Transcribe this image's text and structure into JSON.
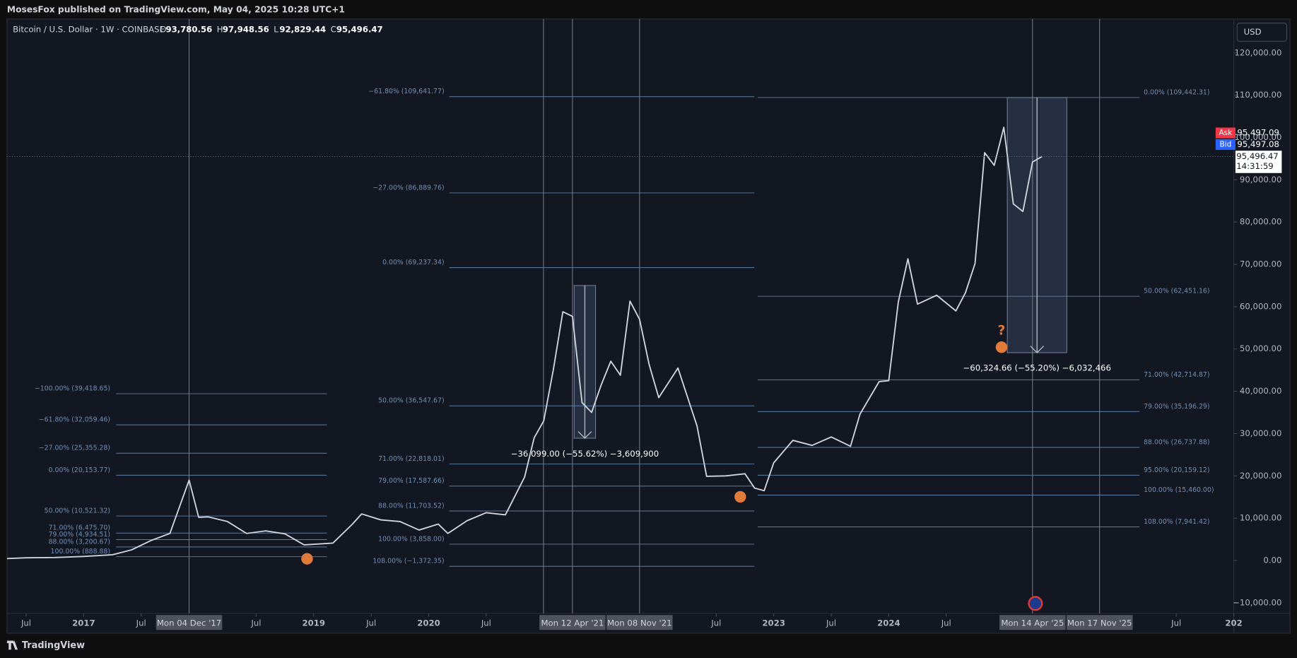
{
  "header": {
    "publisher": "MosesFox published on TradingView.com, May 04, 2025 10:28 UTC+1"
  },
  "legend": {
    "symbol": "Bitcoin / U.S. Dollar · 1W · COINBASE",
    "ohlc": [
      {
        "key": "O",
        "value": "93,780.56"
      },
      {
        "key": "H",
        "value": "97,948.56"
      },
      {
        "key": "L",
        "value": "92,829.44"
      },
      {
        "key": "C",
        "value": "95,496.47"
      }
    ]
  },
  "quote": {
    "currency": "USD",
    "ask_label": "Ask",
    "ask": "95,497.09",
    "bid_label": "Bid",
    "bid": "95,497.08",
    "last": "95,496.47",
    "countdown": "14:31:59"
  },
  "chart_data": {
    "type": "line",
    "x": [
      "2016-05",
      "2016-07",
      "2016-10",
      "2017-01",
      "2017-04",
      "2017-06",
      "2017-08",
      "2017-10",
      "2017-12",
      "2018-01",
      "2018-02",
      "2018-04",
      "2018-06",
      "2018-08",
      "2018-10",
      "2018-12",
      "2019-03",
      "2019-05",
      "2019-06",
      "2019-08",
      "2019-10",
      "2019-12",
      "2020-02",
      "2020-03",
      "2020-05",
      "2020-07",
      "2020-09",
      "2020-11",
      "2020-12",
      "2021-01",
      "2021-02",
      "2021-03",
      "2021-04",
      "2021-05",
      "2021-06",
      "2021-07",
      "2021-08",
      "2021-09",
      "2021-10",
      "2021-11",
      "2021-12",
      "2022-01",
      "2022-03",
      "2022-05",
      "2022-06",
      "2022-08",
      "2022-10",
      "2022-11",
      "2022-12",
      "2023-01",
      "2023-03",
      "2023-05",
      "2023-07",
      "2023-09",
      "2023-10",
      "2023-12",
      "2024-01",
      "2024-02",
      "2024-03",
      "2024-04",
      "2024-06",
      "2024-08",
      "2024-09",
      "2024-10",
      "2024-11",
      "2024-12",
      "2025-01",
      "2025-02",
      "2025-03",
      "2025-04",
      "2025-05"
    ],
    "series": [
      {
        "color": "#d1d4dc",
        "values": [
          450,
          650,
          700,
          970,
          1350,
          2500,
          4700,
          6400,
          19000,
          10200,
          10300,
          9200,
          6400,
          7000,
          6300,
          3700,
          4100,
          8500,
          11000,
          9600,
          9200,
          7200,
          8600,
          6400,
          9400,
          11300,
          10800,
          19700,
          29000,
          33000,
          45000,
          58800,
          57700,
          37300,
          35000,
          41500,
          47100,
          43800,
          61300,
          57000,
          46300,
          38500,
          45500,
          31800,
          19900,
          20000,
          20500,
          17100,
          16500,
          23100,
          28400,
          27200,
          29200,
          27000,
          34600,
          42300,
          42500,
          61100,
          71300,
          60600,
          62700,
          59000,
          63300,
          70200,
          96400,
          93400,
          102400,
          84300,
          82500,
          94200,
          95496.47
        ]
      }
    ],
    "xlim": [
      "2016-05",
      "2027-01"
    ],
    "xticks": [
      {
        "value": "2016-07",
        "label": "Jul"
      },
      {
        "value": "2017-01",
        "label": "2017"
      },
      {
        "value": "2017-07",
        "label": "Jul"
      },
      {
        "value": "2018-07",
        "label": "Jul"
      },
      {
        "value": "2019-01",
        "label": "2019"
      },
      {
        "value": "2019-07",
        "label": "Jul"
      },
      {
        "value": "2020-01",
        "label": "2020"
      },
      {
        "value": "2020-07",
        "label": "Jul"
      },
      {
        "value": "2022-07",
        "label": "Jul"
      },
      {
        "value": "2023-01",
        "label": "2023"
      },
      {
        "value": "2023-07",
        "label": "Jul"
      },
      {
        "value": "2024-01",
        "label": "2024"
      },
      {
        "value": "2024-07",
        "label": "Jul"
      },
      {
        "value": "2026-07",
        "label": "Jul"
      },
      {
        "value": "2027-01",
        "label": "202"
      }
    ],
    "ylim": [
      -12500,
      127800
    ],
    "yticks": [
      {
        "value": -10000,
        "label": "−10,000.00"
      },
      {
        "value": 0,
        "label": "0.00"
      },
      {
        "value": 10000,
        "label": "10,000.00"
      },
      {
        "value": 20000,
        "label": "20,000.00"
      },
      {
        "value": 30000,
        "label": "30,000.00"
      },
      {
        "value": 40000,
        "label": "40,000.00"
      },
      {
        "value": 50000,
        "label": "50,000.00"
      },
      {
        "value": 60000,
        "label": "60,000.00"
      },
      {
        "value": 70000,
        "label": "70,000.00"
      },
      {
        "value": 80000,
        "label": "80,000.00"
      },
      {
        "value": 90000,
        "label": "90,000.00"
      },
      {
        "value": 100000,
        "label": "100,000.00"
      },
      {
        "value": 110000,
        "label": "110,000.00"
      },
      {
        "value": 120000,
        "label": "120,000.00"
      }
    ],
    "fib_sets": [
      {
        "levels": [
          {
            "label": "−100.00% (39,418.65)",
            "value": 39418.65
          },
          {
            "label": "−61.80% (32,059.46)",
            "value": 32059.46
          },
          {
            "label": "−27.00% (25,355.28)",
            "value": 25355.28
          },
          {
            "label": "0.00% (20,153.77)",
            "value": 20153.77
          },
          {
            "label": "50.00% (10,521.32)",
            "value": 10521.32
          },
          {
            "label": "71.00% (6,475.70)",
            "value": 6475.7
          },
          {
            "label": "79.00% (4,934.51)",
            "value": 4934.51
          },
          {
            "label": "88.00% (3,200.67)",
            "value": 3200.67
          },
          {
            "label": "100.00% (888.88)",
            "value": 888.88
          }
        ]
      },
      {
        "levels": [
          {
            "label": "−61.80% (109,641.77)",
            "value": 109641.77
          },
          {
            "label": "−27.00% (86,889.76)",
            "value": 86889.76
          },
          {
            "label": "0.00% (69,237.34)",
            "value": 69237.34
          },
          {
            "label": "50.00% (36,547.67)",
            "value": 36547.67
          },
          {
            "label": "71.00% (22,818.01)",
            "value": 22818.01
          },
          {
            "label": "79.00% (17,587.66)",
            "value": 17587.66
          },
          {
            "label": "88.00% (11,703.52)",
            "value": 11703.52
          },
          {
            "label": "100.00% (3,858.00)",
            "value": 3858
          },
          {
            "label": "108.00% (−1,372.35)",
            "value": -1372.35
          }
        ]
      },
      {
        "levels": [
          {
            "label": "0.00% (109,442.31)",
            "value": 109442.31
          },
          {
            "label": "50.00% (62,451.16)",
            "value": 62451.16
          },
          {
            "label": "71.00% (42,714.87)",
            "value": 42714.87
          },
          {
            "label": "79.00% (35,196.29)",
            "value": 35196.29
          },
          {
            "label": "88.00% (26,737.88)",
            "value": 26737.88
          },
          {
            "label": "95.00% (20,159.12)",
            "value": 20159.12
          },
          {
            "label": "100.00% (15,460.00)",
            "value": 15460
          },
          {
            "label": "108.00% (7,941.42)",
            "value": 7941.42
          }
        ]
      }
    ],
    "measures": [
      {
        "top": 65000,
        "bottom": 28901,
        "label": "−36,099.00 (−55.62%) −3,609,900"
      },
      {
        "top": 109442.31,
        "bottom": 49117.65,
        "label": "−60,324.66 (−55.20%) −6,032,466"
      }
    ],
    "annotation": "?",
    "date_markers": [
      {
        "x": "2017-12",
        "label": "Mon 04 Dec '17"
      },
      {
        "x": "2021-04",
        "label": "Mon 12 Apr '21"
      },
      {
        "x": "2021-11",
        "label": "Mon 08 Nov '21"
      },
      {
        "x": "2025-04",
        "label": "Mon 14 Apr '25"
      },
      {
        "x": "2025-11",
        "label": "Mon 17 Nov '25"
      }
    ]
  },
  "footer": {
    "brand": "TradingView"
  }
}
